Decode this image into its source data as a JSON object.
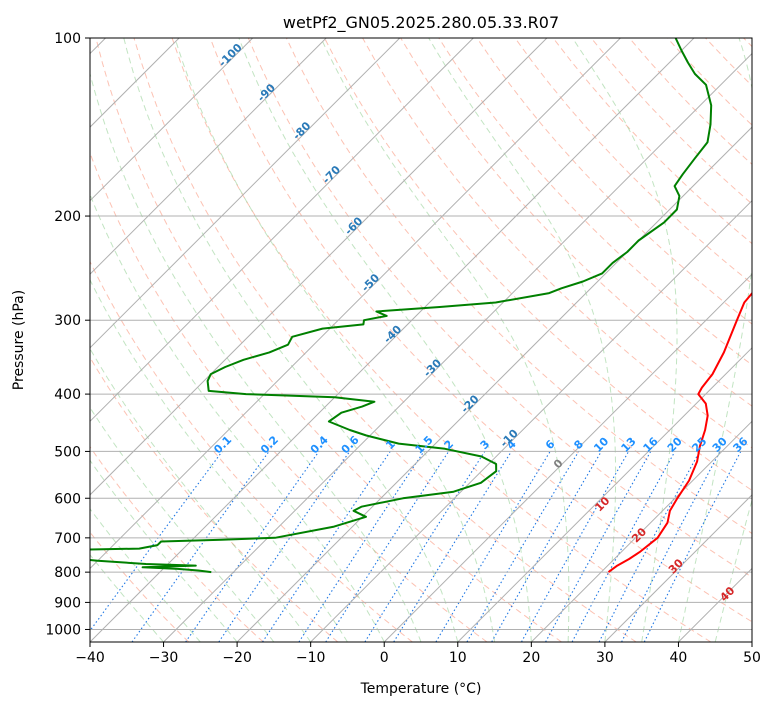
{
  "chart_data": {
    "type": "skew-t",
    "title": "wetPf2_GN05.2025.280.05.33.R07",
    "xlabel": "Temperature (°C)",
    "ylabel": "Pressure (hPa)",
    "xlim": [
      -40,
      50
    ],
    "ylim": [
      1050,
      100
    ],
    "x_ticks": [
      "-40",
      "-30",
      "-20",
      "-10",
      "0",
      "10",
      "20",
      "30",
      "40",
      "50"
    ],
    "y_ticks": [
      "100",
      "200",
      "300",
      "400",
      "500",
      "600",
      "700",
      "800",
      "900",
      "1000"
    ],
    "grid": true,
    "series": [
      {
        "color": "#ff0000",
        "points": [
          [
            21.0,
            800
          ],
          [
            21.3,
            780
          ],
          [
            22.0,
            760
          ],
          [
            22.5,
            740
          ],
          [
            23.0,
            700
          ],
          [
            22.3,
            660
          ],
          [
            21.0,
            630
          ],
          [
            20.3,
            600
          ],
          [
            19.5,
            560
          ],
          [
            18.0,
            520
          ],
          [
            16.3,
            490
          ],
          [
            14.8,
            460
          ],
          [
            13.2,
            435
          ],
          [
            11.3,
            415
          ],
          [
            9.0,
            400
          ],
          [
            8.6,
            390
          ],
          [
            8.2,
            370
          ],
          [
            6.8,
            340
          ],
          [
            4.2,
            300
          ],
          [
            2.8,
            280
          ],
          [
            2.6,
            270
          ],
          [
            1.5,
            250
          ],
          [
            -1.4,
            220
          ],
          [
            -2.8,
            200
          ],
          [
            -2.8,
            190
          ],
          [
            -3.0,
            185
          ],
          [
            -3.6,
            165
          ],
          [
            -6.6,
            150
          ],
          [
            -9.2,
            140
          ],
          [
            -11.6,
            130
          ],
          [
            -14.3,
            123
          ],
          [
            -16.0,
            118
          ],
          [
            -18.8,
            112
          ],
          [
            -20.6,
            106
          ],
          [
            -22.0,
            100
          ]
        ]
      },
      {
        "color": "#008000",
        "points": [
          [
            -33.0,
            800
          ],
          [
            -35.0,
            795
          ],
          [
            -38.0,
            790
          ],
          [
            -43.0,
            785
          ],
          [
            -36.0,
            780
          ],
          [
            -43.0,
            775
          ],
          [
            -50.0,
            765
          ],
          [
            -56.0,
            755
          ],
          [
            -65.0,
            740
          ],
          [
            -59.0,
            735
          ],
          [
            -46.0,
            730
          ],
          [
            -44.0,
            720
          ],
          [
            -44.0,
            710
          ],
          [
            -36.0,
            705
          ],
          [
            -29.0,
            700
          ],
          [
            -22.5,
            670
          ],
          [
            -19.5,
            645
          ],
          [
            -22.0,
            630
          ],
          [
            -21.5,
            620
          ],
          [
            -17.0,
            600
          ],
          [
            -11.0,
            585
          ],
          [
            -8.5,
            565
          ],
          [
            -8.0,
            540
          ],
          [
            -9.0,
            525
          ],
          [
            -12.0,
            510
          ],
          [
            -18.0,
            495
          ],
          [
            -25.0,
            485
          ],
          [
            -30.5,
            470
          ],
          [
            -33.5,
            460
          ],
          [
            -37.5,
            445
          ],
          [
            -37.0,
            430
          ],
          [
            -35.0,
            420
          ],
          [
            -34.0,
            412
          ],
          [
            -40.0,
            405
          ],
          [
            -52.5,
            400
          ],
          [
            -58.0,
            395
          ],
          [
            -59.5,
            380
          ],
          [
            -60.0,
            370
          ],
          [
            -59.0,
            360
          ],
          [
            -57.5,
            350
          ],
          [
            -55.0,
            340
          ],
          [
            -53.5,
            330
          ],
          [
            -54.0,
            320
          ],
          [
            -51.0,
            310
          ],
          [
            -46.0,
            305
          ],
          [
            -46.5,
            300
          ],
          [
            -44.0,
            295
          ],
          [
            -46.0,
            290
          ],
          [
            -38.0,
            285
          ],
          [
            -31.0,
            280
          ],
          [
            -25.0,
            270
          ],
          [
            -24.0,
            265
          ],
          [
            -22.0,
            258
          ],
          [
            -20.5,
            250
          ],
          [
            -20.5,
            240
          ],
          [
            -20.0,
            230
          ],
          [
            -20.0,
            220
          ],
          [
            -19.0,
            205
          ],
          [
            -19.0,
            195
          ],
          [
            -20.5,
            185
          ],
          [
            -22.5,
            178
          ],
          [
            -23.0,
            170
          ],
          [
            -23.5,
            160
          ],
          [
            -24.0,
            150
          ],
          [
            -26.0,
            140
          ],
          [
            -28.5,
            130
          ],
          [
            -32.0,
            120
          ],
          [
            -35.0,
            115
          ],
          [
            -37.5,
            110
          ],
          [
            -40.0,
            105
          ],
          [
            -42.5,
            100
          ]
        ]
      }
    ],
    "mixing_ratio_labels": [
      "0.1",
      "0.2",
      "0.4",
      "0.6",
      "1",
      "1.5",
      "2",
      "3",
      "4",
      "6",
      "8",
      "10",
      "13",
      "16",
      "20",
      "25",
      "30",
      "36"
    ],
    "mixing_ratio_values": [
      0.1,
      0.2,
      0.4,
      0.6,
      1,
      1.5,
      2,
      3,
      4,
      6,
      8,
      10,
      13,
      16,
      20,
      25,
      30,
      36
    ],
    "mixing_ratio_colors": {
      "line": "#1f77e4",
      "label": "#1e90ff"
    },
    "moist_adiabat_labels": [
      "-100",
      "-90",
      "-80",
      "-70",
      "-60",
      "-50",
      "-40",
      "-30",
      "-20",
      "-10"
    ],
    "moist_adiabat_pressures": [
      108,
      125,
      145,
      172,
      210,
      262,
      320,
      365,
      420,
      480
    ],
    "moist_adiabat_label_color": "#2a7ab8",
    "warm_labels": [
      "0",
      "10",
      "20",
      "30",
      "40"
    ],
    "warm_label_temps": [
      24,
      30,
      35,
      40,
      47
    ],
    "warm_label_pressures": [
      530,
      620,
      700,
      790,
      880
    ],
    "colors": {
      "temperature": "#ff0000",
      "dewpoint": "#008000",
      "isotherm_grid": "#b0b0b0",
      "dry_adiabat": "#fa9a80",
      "moist_adiabat": "#8fce8f",
      "mixing_ratio": "#1f77e4",
      "labels_cold": "#2a7ab8",
      "labels_warm": "#d62728",
      "label_zero": "#7f7f7f"
    }
  }
}
